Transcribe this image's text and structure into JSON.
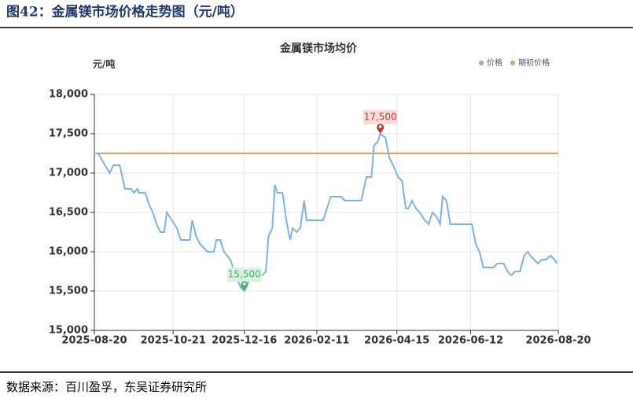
{
  "header": "图42：金属镁市场价格走势图（元/吨）",
  "source": "数据来源：百川盈孚，东吴证券研究所",
  "chart_data": {
    "type": "line",
    "title": "金属镁市场均价",
    "y_label": "元/吨",
    "x": [
      "2025-08-20",
      "2025-08-23",
      "2025-09-01",
      "2025-09-04",
      "2025-09-09",
      "2025-09-13",
      "2025-09-18",
      "2025-09-20",
      "2025-09-23",
      "2025-09-24",
      "2025-09-29",
      "2025-10-02",
      "2025-10-05",
      "2025-10-08",
      "2025-10-11",
      "2025-10-14",
      "2025-10-16",
      "2025-10-20",
      "2025-10-24",
      "2025-10-27",
      "2025-11-03",
      "2025-11-05",
      "2025-11-08",
      "2025-11-11",
      "2025-11-14",
      "2025-11-17",
      "2025-11-22",
      "2025-11-24",
      "2025-11-27",
      "2025-11-30",
      "2025-12-05",
      "2025-12-09",
      "2025-12-13",
      "2025-12-16",
      "2025-12-20",
      "2025-12-25",
      "2025-12-30",
      "2026-01-02",
      "2026-01-04",
      "2026-01-07",
      "2026-01-09",
      "2026-01-11",
      "2026-01-15",
      "2026-01-18",
      "2026-01-21",
      "2026-01-23",
      "2026-01-26",
      "2026-01-29",
      "2026-02-01",
      "2026-02-03",
      "2026-02-09",
      "2026-02-16",
      "2026-02-19",
      "2026-02-22",
      "2026-03-02",
      "2026-03-05",
      "2026-03-15",
      "2026-03-18",
      "2026-03-22",
      "2026-03-26",
      "2026-03-28",
      "2026-03-31",
      "2026-04-02",
      "2026-04-06",
      "2026-04-09",
      "2026-04-12",
      "2026-04-16",
      "2026-04-19",
      "2026-04-22",
      "2026-04-24",
      "2026-04-27",
      "2026-04-30",
      "2026-05-03",
      "2026-05-07",
      "2026-05-10",
      "2026-05-13",
      "2026-05-16",
      "2026-05-19",
      "2026-05-21",
      "2026-05-24",
      "2026-05-27",
      "2026-06-13",
      "2026-06-16",
      "2026-06-19",
      "2026-06-22",
      "2026-06-30",
      "2026-07-03",
      "2026-07-08",
      "2026-07-11",
      "2026-07-14",
      "2026-07-17",
      "2026-07-21",
      "2026-07-24",
      "2026-07-27",
      "2026-07-29",
      "2026-08-01",
      "2026-08-04",
      "2026-08-07",
      "2026-08-10",
      "2026-08-14",
      "2026-08-17",
      "2026-08-19"
    ],
    "series": [
      {
        "name": "价格",
        "color": "#7eb3e8",
        "values": [
          17250,
          17250,
          17000,
          17100,
          17100,
          16800,
          16800,
          16750,
          16800,
          16750,
          16750,
          16600,
          16500,
          16350,
          16250,
          16250,
          16500,
          16400,
          16300,
          16150,
          16150,
          16400,
          16200,
          16100,
          16050,
          16000,
          16000,
          16150,
          16150,
          16000,
          15900,
          15700,
          15550,
          15500,
          15650,
          15700,
          15700,
          15750,
          16200,
          16300,
          16850,
          16750,
          16750,
          16400,
          16150,
          16300,
          16250,
          16300,
          16650,
          16400,
          16400,
          16400,
          16550,
          16700,
          16700,
          16650,
          16650,
          16650,
          16950,
          16950,
          17350,
          17400,
          17500,
          17450,
          17200,
          17100,
          16950,
          16900,
          16550,
          16550,
          16650,
          16550,
          16500,
          16400,
          16350,
          16500,
          16450,
          16350,
          16700,
          16650,
          16350,
          16350,
          16100,
          16000,
          15800,
          15800,
          15850,
          15850,
          15750,
          15700,
          15750,
          15750,
          15950,
          16000,
          15950,
          15900,
          15850,
          15900,
          15900,
          15950,
          15900,
          15850
        ]
      }
    ],
    "reference_line": {
      "name": "期初价格",
      "value": 17250,
      "color": "#d9a15b"
    },
    "markers": [
      {
        "x": "2026-04-02",
        "value": 17500,
        "label": "17,500",
        "color": "#c0392b"
      },
      {
        "x": "2025-12-16",
        "value": 15500,
        "label": "15,500",
        "color": "#4caf6a"
      }
    ],
    "xlim": [
      "2025-08-20",
      "2026-08-20"
    ],
    "xticks": [
      "2025-08-20",
      "2025-10-21",
      "2025-12-16",
      "2026-02-11",
      "2026-04-15",
      "2026-06-12",
      "2026-08-20"
    ],
    "ylim": [
      15000,
      18000
    ],
    "yticks": [
      {
        "value": 15000,
        "label": "15,000"
      },
      {
        "value": 15500,
        "label": "15,500"
      },
      {
        "value": 16000,
        "label": "16,000"
      },
      {
        "value": 16500,
        "label": "16,500"
      },
      {
        "value": 17000,
        "label": "17,000"
      },
      {
        "value": 17500,
        "label": "17,500"
      },
      {
        "value": 18000,
        "label": "18,000"
      }
    ],
    "grid": true
  }
}
